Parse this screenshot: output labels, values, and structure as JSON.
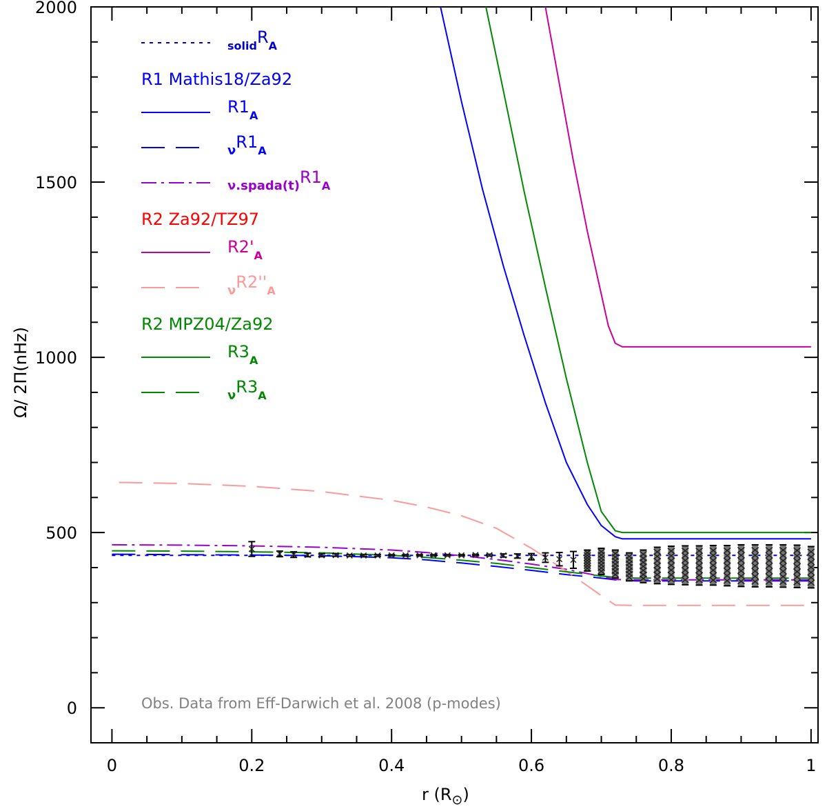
{
  "chart_data": {
    "type": "line",
    "title": "",
    "xlabel": "r (R⊙)",
    "xlabel_main": "r (R",
    "xlabel_sym": "⊙",
    "xlabel_close": ")",
    "ylabel": "Ω/ 2Π(nHz)",
    "xlim": [
      -0.03,
      1.01
    ],
    "ylim": [
      -100,
      2000
    ],
    "xticks": [
      0,
      0.2,
      0.4,
      0.6,
      0.8,
      1
    ],
    "xtick_labels": [
      "0",
      "0.2",
      "0.4",
      "0.6",
      "0.8",
      "1"
    ],
    "yticks": [
      0,
      500,
      1000,
      1500,
      2000
    ],
    "ytick_labels": [
      "0",
      "500",
      "1000",
      "1500",
      "2000"
    ],
    "annotation": "Obs. Data from Eff-Darwich et al. 2008 (p-modes)",
    "annotation_color": "#808080",
    "legend_headers": [
      {
        "text": "R1 Mathis18/Za92",
        "color": "#0000ff"
      },
      {
        "text": "R2 Za92/TZ97",
        "color": "#ff0000"
      },
      {
        "text": "R2 MPZ04/Za92",
        "color": "#008800"
      }
    ],
    "series": [
      {
        "name": "solidR_A",
        "pre": "solid",
        "base": "R",
        "sub": "A",
        "color": "#0000cc",
        "dash": "dot",
        "x": [
          0,
          1
        ],
        "y": [
          435,
          435
        ]
      },
      {
        "name": "R1_A",
        "pre": "",
        "base": "R1",
        "sub": "A",
        "color": "#0000ff",
        "dash": "solid",
        "x": [
          0.47,
          0.5,
          0.53,
          0.56,
          0.59,
          0.62,
          0.65,
          0.68,
          0.7,
          0.72,
          0.73,
          1
        ],
        "y": [
          2000,
          1730,
          1480,
          1260,
          1060,
          870,
          700,
          580,
          520,
          488,
          482,
          482
        ]
      },
      {
        "name": "νR1_A",
        "pre": "ν",
        "base": "R1",
        "sub": "A",
        "color": "#0000ff",
        "dash": "longdash",
        "x": [
          0,
          0.1,
          0.2,
          0.3,
          0.4,
          0.45,
          0.5,
          0.55,
          0.6,
          0.65,
          0.7,
          0.72,
          0.75,
          0.8,
          0.9,
          1
        ],
        "y": [
          438,
          437,
          436,
          434,
          428,
          422,
          413,
          403,
          392,
          380,
          370,
          365,
          362,
          362,
          362,
          362
        ]
      },
      {
        "name": "ν.spada(t)R1_A",
        "pre": "ν.spada(t)",
        "base": "R1",
        "sub": "A",
        "color": "#9900cc",
        "dash": "dashdot",
        "x": [
          0,
          0.1,
          0.2,
          0.3,
          0.4,
          0.45,
          0.5,
          0.55,
          0.6,
          0.65,
          0.7,
          0.72,
          0.75,
          0.8,
          0.9,
          1
        ],
        "y": [
          465,
          464,
          462,
          458,
          450,
          443,
          434,
          423,
          410,
          395,
          375,
          366,
          365,
          365,
          365,
          365
        ]
      },
      {
        "name": "R2'_A",
        "pre": "",
        "base": "R2'",
        "sub": "A",
        "color": "#cc0099",
        "dash": "solid",
        "x": [
          0.62,
          0.64,
          0.66,
          0.68,
          0.7,
          0.71,
          0.72,
          0.73,
          1
        ],
        "y": [
          2000,
          1780,
          1560,
          1360,
          1180,
          1090,
          1040,
          1030,
          1030
        ]
      },
      {
        "name": "νR2''_A",
        "pre": "ν",
        "base": "R2''",
        "sub": "A",
        "color": "#ff9999",
        "dash": "longdash",
        "x": [
          0.01,
          0.1,
          0.2,
          0.3,
          0.4,
          0.45,
          0.5,
          0.55,
          0.6,
          0.65,
          0.7,
          0.72,
          0.75,
          0.8,
          0.9,
          1
        ],
        "y": [
          643,
          640,
          632,
          617,
          592,
          573,
          548,
          512,
          455,
          390,
          320,
          293,
          292,
          292,
          292,
          292
        ]
      },
      {
        "name": "R3_A",
        "pre": "",
        "base": "R3",
        "sub": "A",
        "color": "#008800",
        "dash": "solid",
        "x": [
          0.535,
          0.56,
          0.59,
          0.62,
          0.65,
          0.68,
          0.7,
          0.72,
          0.73,
          1
        ],
        "y": [
          2000,
          1760,
          1470,
          1200,
          940,
          700,
          560,
          505,
          500,
          500
        ]
      },
      {
        "name": "νR3_A",
        "pre": "ν",
        "base": "R3",
        "sub": "A",
        "color": "#008800",
        "dash": "longdash",
        "x": [
          0,
          0.1,
          0.2,
          0.3,
          0.4,
          0.45,
          0.5,
          0.55,
          0.6,
          0.65,
          0.7,
          0.72,
          0.75,
          0.8,
          0.9,
          1
        ],
        "y": [
          448,
          447,
          445,
          442,
          435,
          429,
          421,
          412,
          400,
          388,
          376,
          372,
          370,
          370,
          370,
          370
        ]
      }
    ],
    "observations": {
      "name": "Obs. Data from Eff-Darwich et al. 2008 (p-modes)",
      "color": "#555555",
      "r": [
        0.2,
        0.24,
        0.26,
        0.28,
        0.3,
        0.32,
        0.34,
        0.36,
        0.38,
        0.4,
        0.42,
        0.44,
        0.46,
        0.48,
        0.5,
        0.52,
        0.54,
        0.56,
        0.58,
        0.6,
        0.62,
        0.64,
        0.66,
        0.68,
        0.7,
        0.72,
        0.74,
        0.76,
        0.78,
        0.8,
        0.82,
        0.84,
        0.86,
        0.88,
        0.9,
        0.92,
        0.94,
        0.96,
        0.98,
        1
      ],
      "omega_min": [
        432,
        431,
        429,
        431,
        431,
        432,
        432,
        432,
        432,
        433,
        433,
        433,
        433,
        433,
        433,
        434,
        433,
        430,
        427,
        422,
        415,
        405,
        398,
        390,
        380,
        370,
        362,
        357,
        354,
        352,
        351,
        350,
        350,
        348,
        346,
        345,
        345,
        344,
        343,
        342
      ],
      "omega_max": [
        474,
        447,
        445,
        441,
        439,
        439,
        437,
        437,
        437,
        437,
        437,
        437,
        437,
        437,
        437,
        438,
        438,
        439,
        439,
        440,
        442,
        443,
        446,
        450,
        455,
        450,
        442,
        450,
        458,
        461,
        462,
        462,
        463,
        463,
        465,
        465,
        465,
        465,
        464,
        460
      ]
    }
  }
}
